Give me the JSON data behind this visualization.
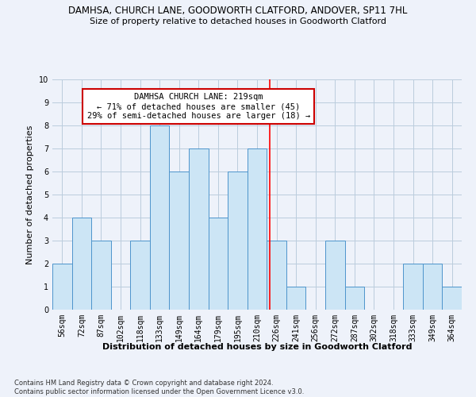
{
  "title": "DAMHSA, CHURCH LANE, GOODWORTH CLATFORD, ANDOVER, SP11 7HL",
  "subtitle": "Size of property relative to detached houses in Goodworth Clatford",
  "xlabel": "Distribution of detached houses by size in Goodworth Clatford",
  "ylabel": "Number of detached properties",
  "categories": [
    "56sqm",
    "72sqm",
    "87sqm",
    "102sqm",
    "118sqm",
    "133sqm",
    "149sqm",
    "164sqm",
    "179sqm",
    "195sqm",
    "210sqm",
    "226sqm",
    "241sqm",
    "256sqm",
    "272sqm",
    "287sqm",
    "302sqm",
    "318sqm",
    "333sqm",
    "349sqm",
    "364sqm"
  ],
  "values": [
    2,
    4,
    3,
    0,
    3,
    8,
    6,
    7,
    4,
    6,
    7,
    3,
    1,
    0,
    3,
    1,
    0,
    0,
    2,
    2,
    1
  ],
  "bar_color": "#cce5f5",
  "bar_edge_color": "#4d94cc",
  "red_line_index": 10.65,
  "annotation_text": "DAMHSA CHURCH LANE: 219sqm\n← 71% of detached houses are smaller (45)\n29% of semi-detached houses are larger (18) →",
  "annotation_box_color": "#ffffff",
  "annotation_box_edge": "#cc0000",
  "ylim": [
    0,
    10
  ],
  "yticks": [
    0,
    1,
    2,
    3,
    4,
    5,
    6,
    7,
    8,
    9,
    10
  ],
  "grid_color": "#bbccdd",
  "background_color": "#eef2fa",
  "footer_text": "Contains HM Land Registry data © Crown copyright and database right 2024.\nContains public sector information licensed under the Open Government Licence v3.0.",
  "title_fontsize": 8.5,
  "subtitle_fontsize": 8,
  "ylabel_fontsize": 8,
  "xlabel_fontsize": 8,
  "tick_fontsize": 7,
  "annotation_fontsize": 7.5,
  "footer_fontsize": 6
}
